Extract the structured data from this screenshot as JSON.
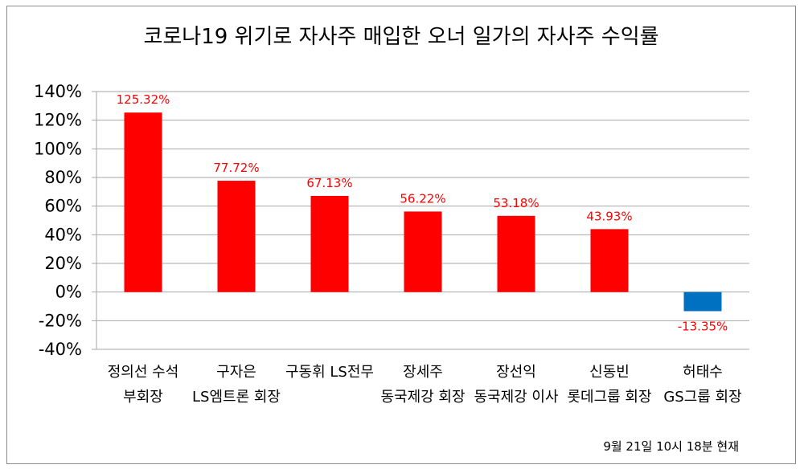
{
  "chart_data": {
    "type": "bar",
    "title": "코로나19 위기로 자사주 매입한 오너 일가의 자사주 수익률",
    "categories": [
      [
        "정의선 수석",
        "부회장"
      ],
      [
        "구자은",
        "LS엠트론 회장"
      ],
      [
        "구동휘 LS전무",
        ""
      ],
      [
        "장세주",
        "동국제강 회장"
      ],
      [
        "장선익",
        "동국제강 이사"
      ],
      [
        "신동빈",
        "롯데그룹 회장"
      ],
      [
        "허태수",
        "GS그룹 회장"
      ]
    ],
    "values": [
      125.32,
      77.72,
      67.13,
      56.22,
      53.18,
      43.93,
      -13.35
    ],
    "data_labels": [
      "125.32%",
      "77.72%",
      "67.13%",
      "56.22%",
      "53.18%",
      "43.93%",
      "-13.35%"
    ],
    "bar_colors": [
      "#ff0000",
      "#ff0000",
      "#ff0000",
      "#ff0000",
      "#ff0000",
      "#ff0000",
      "#0070c0"
    ],
    "label_color": "#ff0000",
    "ylim": [
      -40,
      140
    ],
    "yticks": [
      140,
      120,
      100,
      80,
      60,
      40,
      20,
      0,
      -20,
      -40
    ],
    "ytick_labels": [
      "140%",
      "120%",
      "100%",
      "80%",
      "60%",
      "40%",
      "20%",
      "0%",
      "-20%",
      "-40%"
    ],
    "grid": true,
    "legend": "none",
    "xlabel": "",
    "ylabel": "",
    "footnote": "9월 21일 10시 18분 현재"
  }
}
